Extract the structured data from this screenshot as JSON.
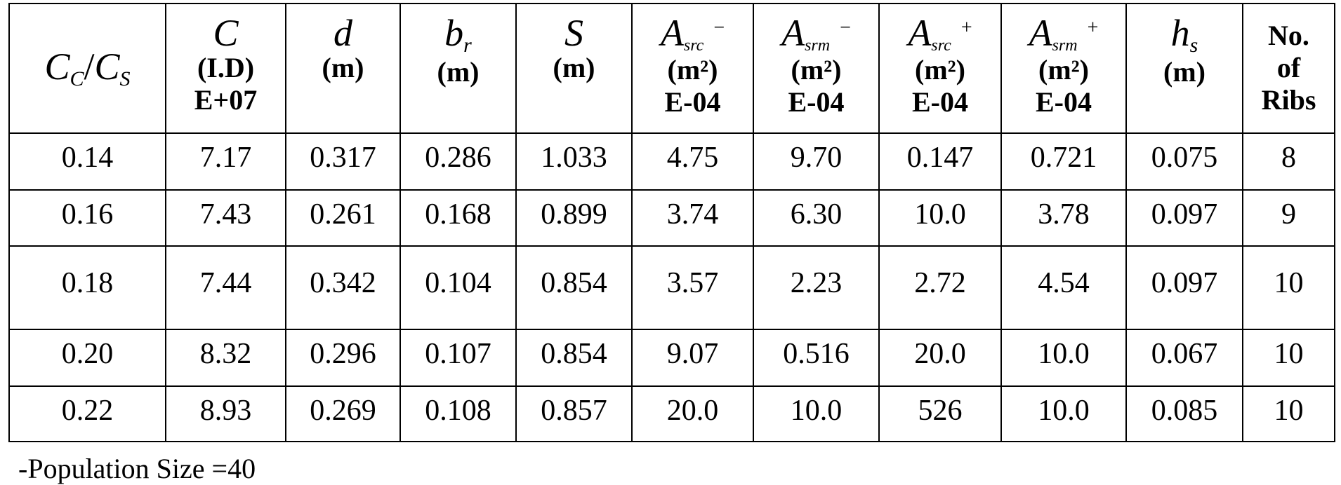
{
  "table": {
    "headers": [
      {
        "sym": "C",
        "sub": "C",
        "sym2": "C",
        "sub2": "S",
        "lines": []
      },
      {
        "sym": "C",
        "lines": [
          "(I.D)",
          "E+07"
        ]
      },
      {
        "sym": "d",
        "lines": [
          "(m)"
        ]
      },
      {
        "sym": "b",
        "sub": "r",
        "lines": [
          "(m)"
        ]
      },
      {
        "sym": "S",
        "lines": [
          "(m)"
        ]
      },
      {
        "sym": "A",
        "sub": "src",
        "sup": "−",
        "lines": [
          "(m²)",
          "E-04"
        ]
      },
      {
        "sym": "A",
        "sub": "srm",
        "sup": "−",
        "lines": [
          "(m²)",
          "E-04"
        ]
      },
      {
        "sym": "A",
        "sub": "src",
        "sup": "+",
        "lines": [
          "(m²)",
          "E-04"
        ]
      },
      {
        "sym": "A",
        "sub": "srm",
        "sup": "+",
        "lines": [
          "(m²)",
          "E-04"
        ]
      },
      {
        "sym": "h",
        "sub": "s",
        "lines": [
          "(m)"
        ]
      },
      {
        "lines": [
          "No.",
          "of",
          "Ribs"
        ]
      }
    ],
    "rows": [
      [
        "0.14",
        "7.17",
        "0.317",
        "0.286",
        "1.033",
        "4.75",
        "9.70",
        "0.147",
        "0.721",
        "0.075",
        "8"
      ],
      [
        "0.16",
        "7.43",
        "0.261",
        "0.168",
        "0.899",
        "3.74",
        "6.30",
        "10.0",
        "3.78",
        "0.097",
        "9"
      ],
      [
        "0.18",
        "7.44",
        "0.342",
        "0.104",
        "0.854",
        "3.57",
        "2.23",
        "2.72",
        "4.54",
        "0.097",
        "10"
      ],
      [
        "0.20",
        "8.32",
        "0.296",
        "0.107",
        "0.854",
        "9.07",
        "0.516",
        "20.0",
        "10.0",
        "0.067",
        "10"
      ],
      [
        "0.22",
        "8.93",
        "0.269",
        "0.108",
        "0.857",
        "20.0",
        "10.0",
        "526",
        "10.0",
        "0.085",
        "10"
      ]
    ]
  },
  "footer": "-Population Size =40"
}
